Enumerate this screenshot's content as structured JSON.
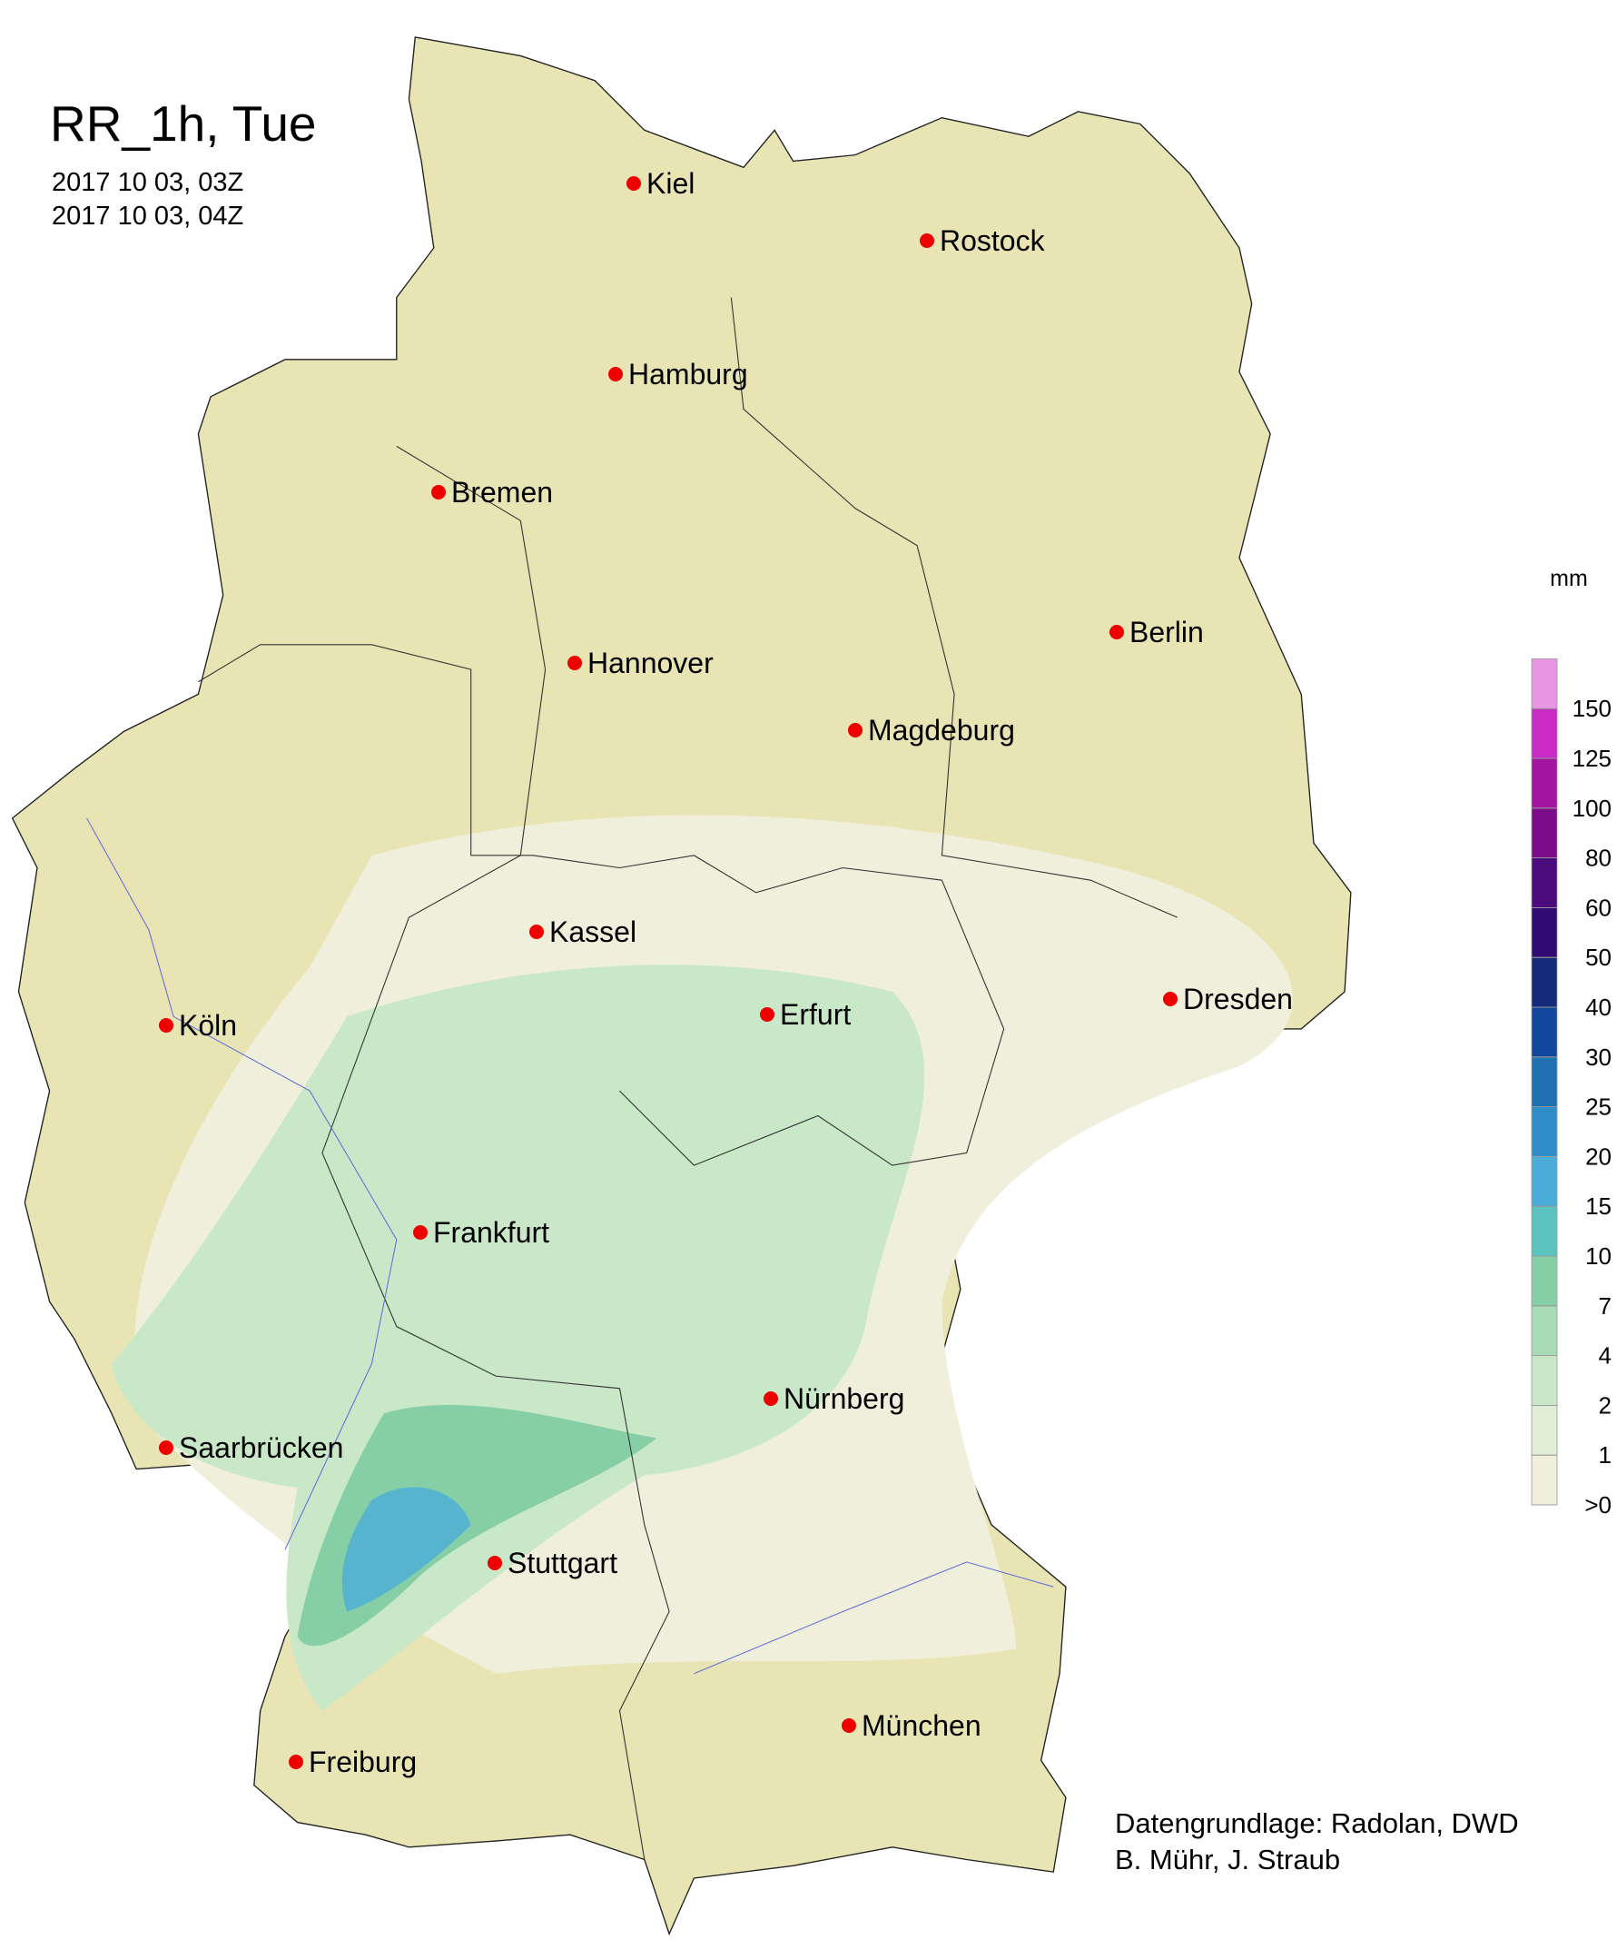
{
  "title": "RR_1h, Tue",
  "dates": [
    "2017 10 03, 03Z",
    "2017 10 03, 04Z"
  ],
  "cities": [
    "Kiel",
    "Rostock",
    "Hamburg",
    "Bremen",
    "Berlin",
    "Hannover",
    "Magdeburg",
    "Kassel",
    "Dresden",
    "Köln",
    "Erfurt",
    "Frankfurt",
    "Nürnberg",
    "Saarbrücken",
    "Stuttgart",
    "München",
    "Freiburg"
  ],
  "legend": {
    "unit": "mm",
    "ticks": [
      {
        "value": 0,
        "label": ">0"
      },
      1,
      2,
      4,
      7,
      10,
      15,
      20,
      25,
      30,
      40,
      50,
      60,
      80,
      100,
      125,
      150
    ],
    "colors": [
      "#efefdc",
      "#e0efd6",
      "#c9e8c8",
      "#a9dbb5",
      "#86cfa6",
      "#5cc4bf",
      "#4aacd9",
      "#2f8ec8",
      "#1f6fb3",
      "#10479c",
      "#162a7a",
      "#2f0a73",
      "#4b0d7e",
      "#7b0c8a",
      "#a3149f",
      "#c92cc6",
      "#e896e3"
    ]
  },
  "credits": [
    "Datengrundlage: Radolan, DWD",
    "B. Mühr, J. Straub"
  ]
}
